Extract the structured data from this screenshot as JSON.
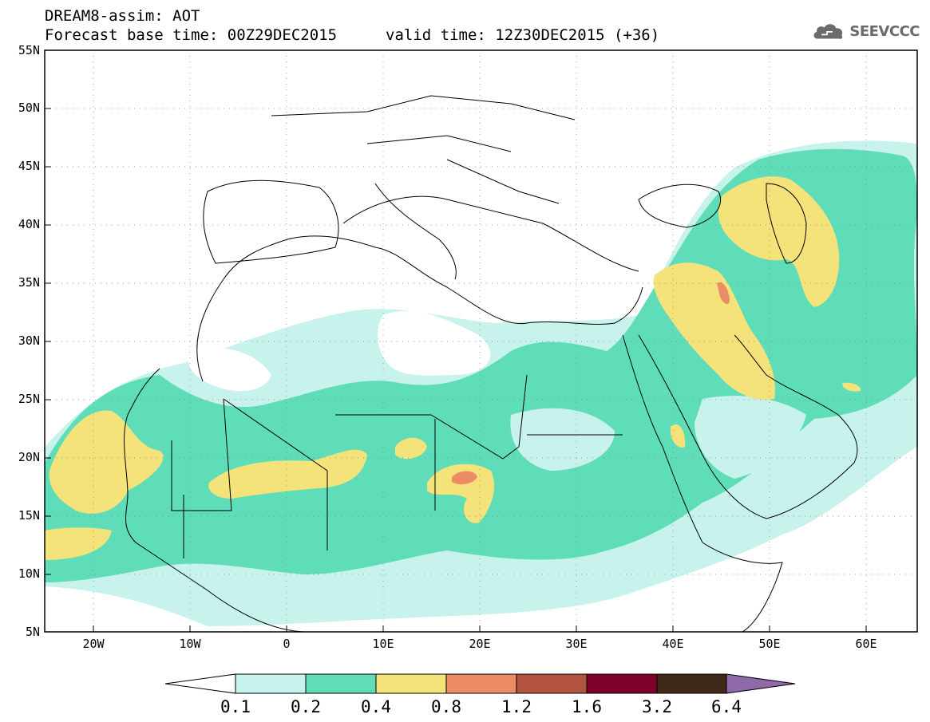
{
  "header": {
    "line1": "DREAM8-assim: AOT",
    "line2": "Forecast base time: 00Z29DEC2015",
    "line3": "valid time: 12Z30DEC2015 (+36)"
  },
  "logo": {
    "text": "SEEVCCC",
    "icon": "cloud-icon"
  },
  "map": {
    "lon_range": [
      -25,
      65
    ],
    "lat_range": [
      5,
      55
    ],
    "lat_labels": [
      "5N",
      "10N",
      "15N",
      "20N",
      "25N",
      "30N",
      "35N",
      "40N",
      "45N",
      "50N",
      "55N"
    ],
    "lon_labels": [
      "20W",
      "10W",
      "0",
      "10E",
      "20E",
      "30E",
      "40E",
      "50E",
      "60E"
    ],
    "grid": "dotted"
  },
  "colorbar": {
    "labels": [
      "0.1",
      "0.2",
      "0.4",
      "0.8",
      "1.2",
      "1.6",
      "3.2",
      "6.4"
    ],
    "colors": [
      "#ffffff",
      "#c8f2ec",
      "#5fdcb8",
      "#f4e27a",
      "#ec8c64",
      "#b25440",
      "#7f0028",
      "#3f2818",
      "#8f69a8"
    ]
  }
}
